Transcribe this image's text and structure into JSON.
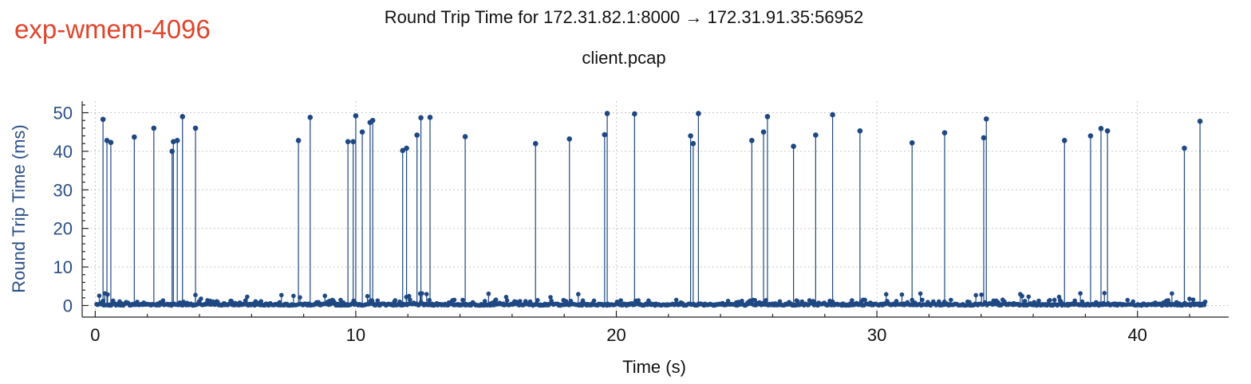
{
  "tag_label": "exp-wmem-4096",
  "chart_data": {
    "type": "scatter",
    "style": "stem",
    "title": "Round Trip Time for 172.31.82.1:8000 → 172.31.91.35:56952",
    "subtitle": "client.pcap",
    "xlabel": "Time (s)",
    "ylabel": "Round Trip Time (ms)",
    "xlim": [
      -0.5,
      43.5
    ],
    "ylim": [
      -3,
      53
    ],
    "xticks": [
      0,
      10,
      20,
      30,
      40
    ],
    "yticks": [
      0,
      10,
      20,
      30,
      40,
      50
    ],
    "grid": true,
    "color": "#1f4883",
    "spikes": [
      [
        0.3,
        48.3
      ],
      [
        0.45,
        42.8
      ],
      [
        0.6,
        42.3
      ],
      [
        1.5,
        43.7
      ],
      [
        2.25,
        46.0
      ],
      [
        2.95,
        40.0
      ],
      [
        3.0,
        42.5
      ],
      [
        3.15,
        42.8
      ],
      [
        3.35,
        49.0
      ],
      [
        3.85,
        46.0
      ],
      [
        7.8,
        42.8
      ],
      [
        8.25,
        48.8
      ],
      [
        9.7,
        42.5
      ],
      [
        9.9,
        42.5
      ],
      [
        10.0,
        49.2
      ],
      [
        10.25,
        45.0
      ],
      [
        10.55,
        47.5
      ],
      [
        10.65,
        48.0
      ],
      [
        11.8,
        40.2
      ],
      [
        11.95,
        40.8
      ],
      [
        12.35,
        44.2
      ],
      [
        12.5,
        48.7
      ],
      [
        12.85,
        48.8
      ],
      [
        14.2,
        43.8
      ],
      [
        16.9,
        42.0
      ],
      [
        18.2,
        43.2
      ],
      [
        19.55,
        44.3
      ],
      [
        19.65,
        49.8
      ],
      [
        20.7,
        49.7
      ],
      [
        22.85,
        44.0
      ],
      [
        22.95,
        42.0
      ],
      [
        23.15,
        49.8
      ],
      [
        25.2,
        42.8
      ],
      [
        25.65,
        45.0
      ],
      [
        25.8,
        49.0
      ],
      [
        26.8,
        41.3
      ],
      [
        27.65,
        44.2
      ],
      [
        28.3,
        49.5
      ],
      [
        29.35,
        45.3
      ],
      [
        31.35,
        42.2
      ],
      [
        32.6,
        44.8
      ],
      [
        34.1,
        43.5
      ],
      [
        34.2,
        48.4
      ],
      [
        37.2,
        42.8
      ],
      [
        38.2,
        44.0
      ],
      [
        38.6,
        45.9
      ],
      [
        38.85,
        45.3
      ],
      [
        41.8,
        40.8
      ],
      [
        42.4,
        47.8
      ]
    ],
    "baseline_range_ms": [
      0,
      3
    ],
    "baseline_points": 1200
  }
}
